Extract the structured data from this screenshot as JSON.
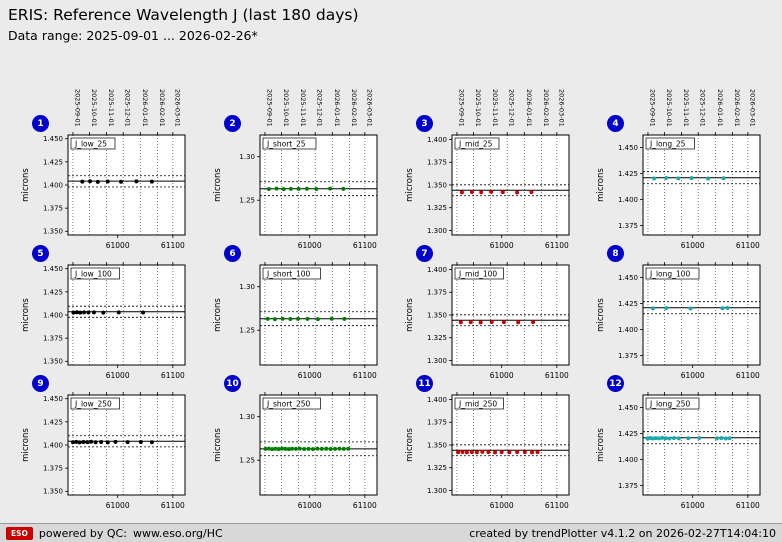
{
  "header": {
    "title": "ERIS: Reference Wavelength J (last 180 days)",
    "subtitle": "Data range: 2025-09-01 ... 2026-02-26*"
  },
  "footer": {
    "logo_text": "ESO",
    "powered_prefix": "powered by QC:",
    "qc_link": "www.eso.org/HC",
    "right_text": "created by trendPlotter v4.1.2 on 2026-02-27T14:04:10"
  },
  "colors": {
    "badge": "#0000cc",
    "logo": "#cc0000",
    "plot_bg": "#ffffff",
    "grid_line": "#444444"
  },
  "x_axis": {
    "xlim": [
      60910,
      61122
    ],
    "xticks": [
      61000,
      61100
    ],
    "xtick_labels": [
      "61000",
      "61100"
    ],
    "date_mjd": [
      60919,
      60949,
      60980,
      61010,
      61041,
      61072,
      61100
    ],
    "date_labels": [
      "2025-09-01",
      "2025-10-01",
      "2025-11-01",
      "2025-12-01",
      "2026-01-01",
      "2026-02-01",
      "2026-03-01"
    ]
  },
  "chart_data": [
    {
      "index": 1,
      "label": "J_low_25",
      "type": "scatter",
      "color": "#000000",
      "ylabel": "microns",
      "ylim": [
        1.346,
        1.454
      ],
      "ytick_vals": [
        1.35,
        1.375,
        1.4,
        1.425,
        1.45
      ],
      "ytick_labels": [
        "1.350",
        "1.375",
        "1.400",
        "1.425",
        "1.450"
      ],
      "mean": 1.4042,
      "upper": 1.41,
      "lower": 1.3978,
      "x": [
        60936,
        60950,
        60964,
        60982,
        61006,
        61034,
        61062
      ],
      "y": [
        1.4036,
        1.404,
        1.4034,
        1.4038,
        1.4035,
        1.4039,
        1.4036
      ]
    },
    {
      "index": 2,
      "label": "J_short_25",
      "type": "scatter",
      "color": "#008000",
      "ylabel": "microns",
      "ylim": [
        1.21,
        1.325
      ],
      "ytick_vals": [
        1.25,
        1.3
      ],
      "ytick_labels": [
        "1.25",
        "1.30"
      ],
      "mean": 1.2632,
      "upper": 1.2712,
      "lower": 1.2552,
      "x": [
        60926,
        60940,
        60953,
        60966,
        60980,
        60995,
        61012,
        61037,
        61061
      ],
      "y": [
        1.2629,
        1.2633,
        1.2628,
        1.2631,
        1.263,
        1.2632,
        1.2629,
        1.2633,
        1.263
      ]
    },
    {
      "index": 3,
      "label": "J_mid_25",
      "type": "scatter",
      "color": "#cc0000",
      "ylabel": "microns",
      "ylim": [
        1.295,
        1.405
      ],
      "ytick_vals": [
        1.3,
        1.325,
        1.35,
        1.375,
        1.4
      ],
      "ytick_labels": [
        "1.300",
        "1.325",
        "1.350",
        "1.375",
        "1.400"
      ],
      "mean": 1.3442,
      "upper": 1.3502,
      "lower": 1.3382,
      "x": [
        60928,
        60946,
        60963,
        60981,
        61002,
        61028,
        61054
      ],
      "y": [
        1.3419,
        1.3423,
        1.342,
        1.3424,
        1.3421,
        1.3418,
        1.3422
      ]
    },
    {
      "index": 4,
      "label": "J_long_25",
      "type": "scatter",
      "color": "#1ca9a9",
      "ylabel": "microns",
      "ylim": [
        1.366,
        1.462
      ],
      "ytick_vals": [
        1.375,
        1.4,
        1.425,
        1.45
      ],
      "ytick_labels": [
        "1.375",
        "1.400",
        "1.425",
        "1.450"
      ],
      "mean": 1.421,
      "upper": 1.4268,
      "lower": 1.4152,
      "x": [
        60930,
        60952,
        60974,
        60998,
        61028,
        61056
      ],
      "y": [
        1.4203,
        1.4207,
        1.4204,
        1.4206,
        1.4203,
        1.4205
      ]
    },
    {
      "index": 5,
      "label": "J_low_100",
      "type": "scatter",
      "color": "#000000",
      "ylabel": "microns",
      "ylim": [
        1.346,
        1.454
      ],
      "ytick_vals": [
        1.35,
        1.375,
        1.4,
        1.425,
        1.45
      ],
      "ytick_labels": [
        "1.350",
        "1.375",
        "1.400",
        "1.425",
        "1.450"
      ],
      "mean": 1.4035,
      "upper": 1.4095,
      "lower": 1.3975,
      "x": [
        60920,
        60926,
        60932,
        60939,
        60947,
        60957,
        60974,
        61002,
        61046
      ],
      "y": [
        1.4026,
        1.403,
        1.4025,
        1.4028,
        1.4027,
        1.4029,
        1.4026,
        1.4028,
        1.4027
      ]
    },
    {
      "index": 6,
      "label": "J_short_100",
      "type": "scatter",
      "color": "#008000",
      "ylabel": "microns",
      "ylim": [
        1.21,
        1.325
      ],
      "ytick_vals": [
        1.25,
        1.3
      ],
      "ytick_labels": [
        "1.25",
        "1.30"
      ],
      "mean": 1.2632,
      "upper": 1.2712,
      "lower": 1.2552,
      "x": [
        60924,
        60937,
        60951,
        60965,
        60979,
        60996,
        61015,
        61040,
        61063
      ],
      "y": [
        1.263,
        1.2628,
        1.2632,
        1.2629,
        1.2631,
        1.263,
        1.2628,
        1.2632,
        1.263
      ]
    },
    {
      "index": 7,
      "label": "J_mid_100",
      "type": "scatter",
      "color": "#cc0000",
      "ylabel": "microns",
      "ylim": [
        1.295,
        1.405
      ],
      "ytick_vals": [
        1.3,
        1.325,
        1.35,
        1.375,
        1.4
      ],
      "ytick_labels": [
        "1.300",
        "1.325",
        "1.350",
        "1.375",
        "1.400"
      ],
      "mean": 1.3442,
      "upper": 1.3502,
      "lower": 1.3382,
      "x": [
        60926,
        60944,
        60962,
        60982,
        61004,
        61030,
        61057
      ],
      "y": [
        1.342,
        1.3422,
        1.3419,
        1.3423,
        1.3421,
        1.342,
        1.3422
      ]
    },
    {
      "index": 8,
      "label": "J_long_100",
      "type": "scatter",
      "color": "#1ca9a9",
      "ylabel": "microns",
      "ylim": [
        1.366,
        1.462
      ],
      "ytick_vals": [
        1.375,
        1.4,
        1.425,
        1.45
      ],
      "ytick_labels": [
        "1.375",
        "1.400",
        "1.425",
        "1.450"
      ],
      "mean": 1.421,
      "upper": 1.4268,
      "lower": 1.4152,
      "x": [
        60928,
        60952,
        60996,
        61054,
        61063
      ],
      "y": [
        1.4204,
        1.4206,
        1.4203,
        1.4205,
        1.4207
      ]
    },
    {
      "index": 9,
      "label": "J_low_250",
      "type": "scatter",
      "color": "#000000",
      "ylabel": "microns",
      "ylim": [
        1.346,
        1.454
      ],
      "ytick_vals": [
        1.35,
        1.375,
        1.4,
        1.425,
        1.45
      ],
      "ytick_labels": [
        "1.350",
        "1.375",
        "1.400",
        "1.425",
        "1.450"
      ],
      "mean": 1.404,
      "upper": 1.41,
      "lower": 1.398,
      "x": [
        60919,
        60925,
        60931,
        60938,
        60945,
        60952,
        60960,
        60970,
        60982,
        60996,
        61018,
        61042,
        61062
      ],
      "y": [
        1.403,
        1.4034,
        1.4029,
        1.4033,
        1.4031,
        1.4035,
        1.403,
        1.4032,
        1.4029,
        1.4034,
        1.4031,
        1.4033,
        1.403
      ]
    },
    {
      "index": 10,
      "label": "J_short_250",
      "type": "scatter",
      "color": "#008000",
      "ylabel": "microns",
      "ylim": [
        1.21,
        1.325
      ],
      "ytick_vals": [
        1.25,
        1.3
      ],
      "ytick_labels": [
        "1.25",
        "1.30"
      ],
      "mean": 1.2631,
      "upper": 1.2711,
      "lower": 1.2551,
      "x": [
        60920,
        60926,
        60932,
        60938,
        60944,
        60950,
        60956,
        60962,
        60968,
        60975,
        60982,
        60990,
        60998,
        61006,
        61014,
        61022,
        61030,
        61038,
        61046,
        61054,
        61062,
        61070
      ],
      "y": [
        1.263,
        1.2633,
        1.2628,
        1.2632,
        1.2629,
        1.2634,
        1.263,
        1.2627,
        1.2632,
        1.263,
        1.2633,
        1.2629,
        1.2631,
        1.2628,
        1.2633,
        1.263,
        1.2632,
        1.2629,
        1.2631,
        1.2634,
        1.263,
        1.2632
      ]
    },
    {
      "index": 11,
      "label": "J_mid_250",
      "type": "scatter",
      "color": "#cc0000",
      "ylabel": "microns",
      "ylim": [
        1.295,
        1.405
      ],
      "ytick_vals": [
        1.3,
        1.325,
        1.35,
        1.375,
        1.4
      ],
      "ytick_labels": [
        "1.300",
        "1.325",
        "1.350",
        "1.375",
        "1.400"
      ],
      "mean": 1.3442,
      "upper": 1.3502,
      "lower": 1.3382,
      "x": [
        60921,
        60929,
        60937,
        60946,
        60955,
        60965,
        60976,
        60988,
        61000,
        61014,
        61028,
        61042,
        61055,
        61065
      ],
      "y": [
        1.342,
        1.3423,
        1.3419,
        1.3422,
        1.342,
        1.3424,
        1.3421,
        1.3419,
        1.3422,
        1.342,
        1.3423,
        1.3421,
        1.3419,
        1.3422
      ]
    },
    {
      "index": 12,
      "label": "J_long_250",
      "type": "scatter",
      "color": "#1ca9a9",
      "ylabel": "microns",
      "ylim": [
        1.366,
        1.462
      ],
      "ytick_vals": [
        1.375,
        1.4,
        1.425,
        1.45
      ],
      "ytick_labels": [
        "1.375",
        "1.400",
        "1.425",
        "1.450"
      ],
      "mean": 1.421,
      "upper": 1.4268,
      "lower": 1.4152,
      "x": [
        60918,
        60923,
        60928,
        60933,
        60939,
        60945,
        60951,
        60958,
        60966,
        60975,
        60992,
        61012,
        61044,
        61052,
        61060,
        61067
      ],
      "y": [
        1.4204,
        1.4207,
        1.4203,
        1.4206,
        1.4204,
        1.4208,
        1.4205,
        1.4203,
        1.4206,
        1.4204,
        1.4205,
        1.4207,
        1.4204,
        1.4206,
        1.4203,
        1.4205
      ]
    }
  ]
}
